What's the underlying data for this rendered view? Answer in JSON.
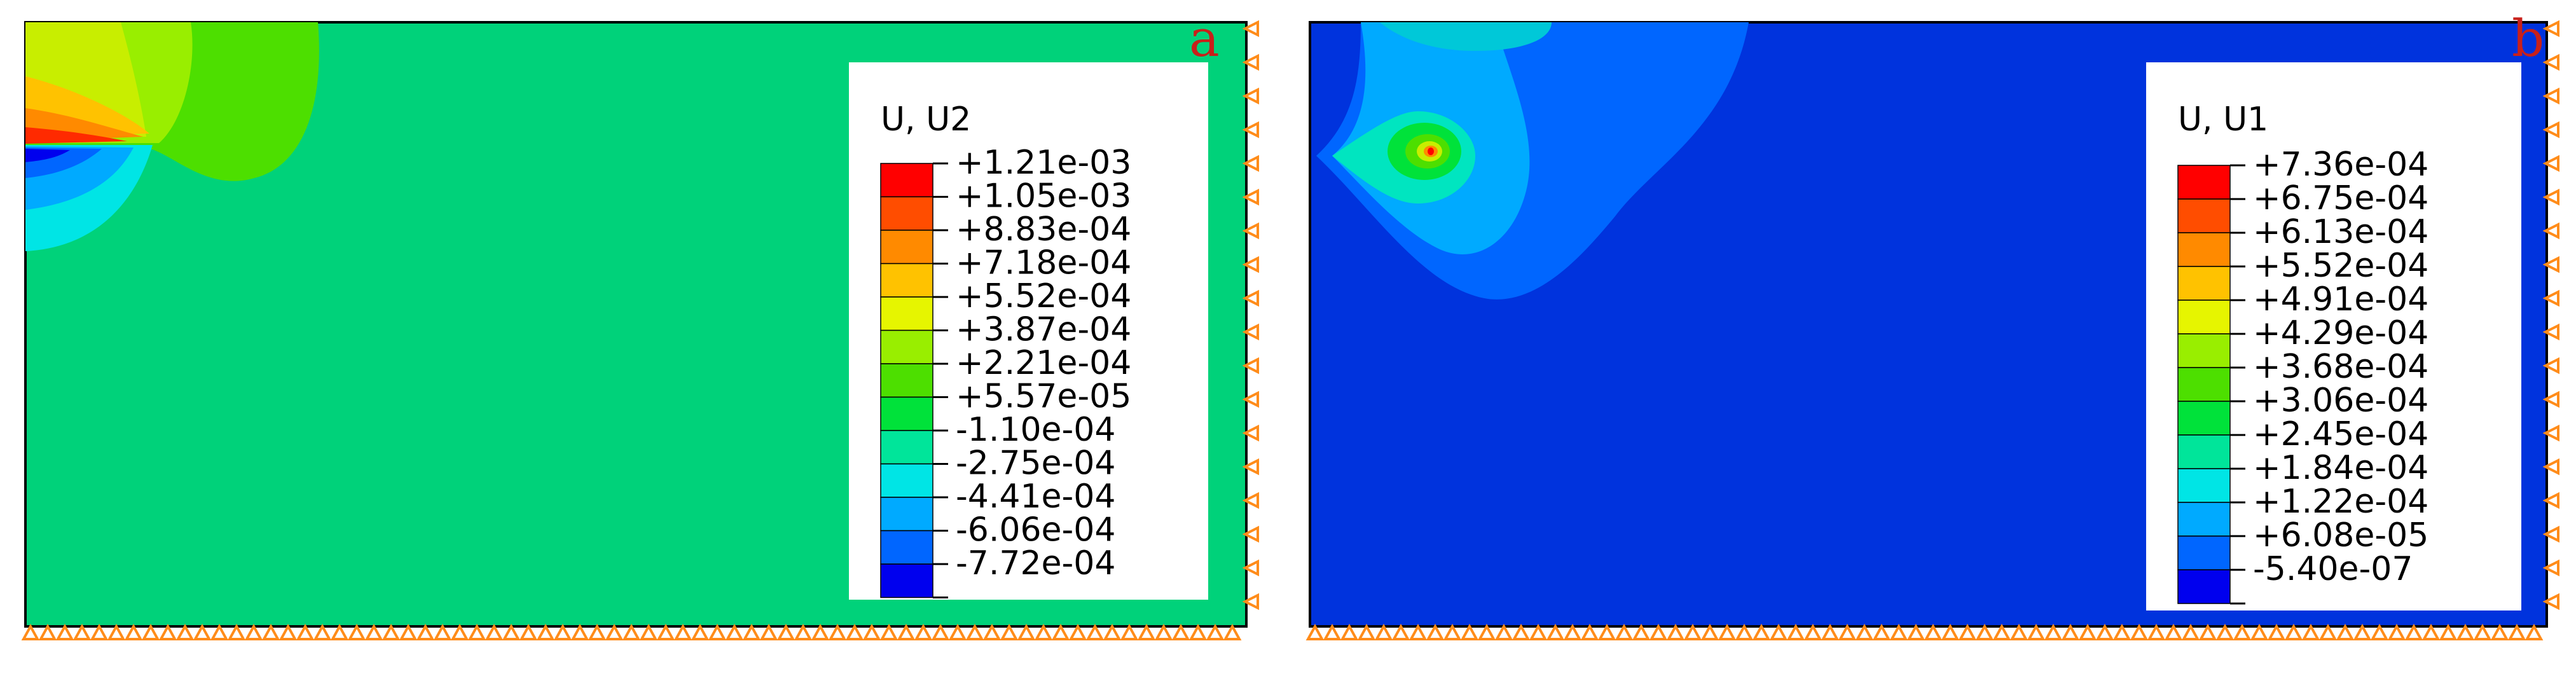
{
  "panels": [
    {
      "letter": "a",
      "legend_title": "U, U2",
      "background_color": "#00d27a",
      "legend_labels": [
        "+1.21e-03",
        "+1.05e-03",
        "+8.83e-04",
        "+7.18e-04",
        "+5.52e-04",
        "+3.87e-04",
        "+2.21e-04",
        "+5.57e-05",
        "-1.10e-04",
        "-2.75e-04",
        "-4.41e-04",
        "-6.06e-04",
        "-7.72e-04"
      ],
      "legend_colors": [
        "#ff0000",
        "#ff4d00",
        "#ff8a00",
        "#ffc200",
        "#e6f500",
        "#99ee00",
        "#4ddf00",
        "#00e23a",
        "#00e59a",
        "#00e5e5",
        "#00aaff",
        "#0066ff",
        "#0000ee"
      ]
    },
    {
      "letter": "b",
      "legend_title": "U, U1",
      "background_color": "#0033dd",
      "legend_labels": [
        "+7.36e-04",
        "+6.75e-04",
        "+6.13e-04",
        "+5.52e-04",
        "+4.91e-04",
        "+4.29e-04",
        "+3.68e-04",
        "+3.06e-04",
        "+2.45e-04",
        "+1.84e-04",
        "+1.22e-04",
        "+6.08e-05",
        "-5.40e-07"
      ],
      "legend_colors": [
        "#ff0000",
        "#ff4d00",
        "#ff8a00",
        "#ffc200",
        "#e6f500",
        "#99ee00",
        "#4ddf00",
        "#00e23a",
        "#00e59a",
        "#00e5e5",
        "#00aaff",
        "#0066ff",
        "#0000ee"
      ]
    }
  ],
  "boundary_marker_color": "#ff8c1a"
}
